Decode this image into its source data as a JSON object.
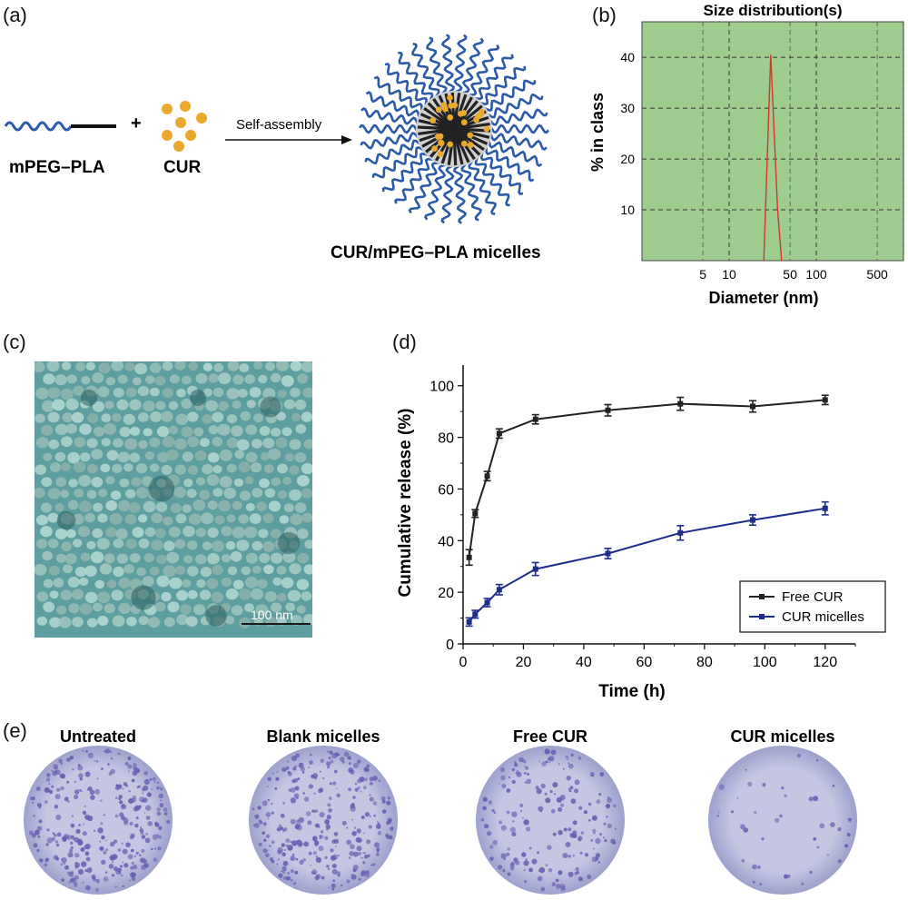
{
  "panels": {
    "a": {
      "label": "(a)",
      "polymer_label": "mPEG–PLA",
      "plus": "+",
      "drug_label": "CUR",
      "arrow_label": "Self-assembly",
      "product_label": "CUR/mPEG–PLA micelles",
      "colors": {
        "peg": "#2b5aa8",
        "drug": "#e9a92c",
        "core": "#222222"
      }
    },
    "b": {
      "label": "(b)",
      "background_color": "#9fcd8f"
    },
    "c": {
      "label": "(c)",
      "scale_bar": "100 nm",
      "background_color": "#5f9fa0"
    },
    "d": {
      "label": "(d)"
    },
    "e": {
      "label": "(e)",
      "plates": [
        {
          "title": "Untreated",
          "density": 1.0
        },
        {
          "title": "Blank micelles",
          "density": 0.9
        },
        {
          "title": "Free CUR",
          "density": 0.55
        },
        {
          "title": "CUR micelles",
          "density": 0.12
        }
      ]
    }
  },
  "chart_data": [
    {
      "type": "line",
      "title": "Size distribution(s)",
      "xlabel": "Diameter (nm)",
      "ylabel": "% in class",
      "x_scale": "log",
      "x_ticks": [
        5,
        10,
        50,
        100,
        500
      ],
      "y_ticks": [
        10,
        20,
        30,
        40
      ],
      "xlim": [
        1,
        1000
      ],
      "ylim": [
        0,
        47
      ],
      "grid": true,
      "series": [
        {
          "x": [
            25,
            30,
            36,
            40
          ],
          "y": [
            0,
            40.5,
            10,
            0
          ],
          "color": "#d0392b"
        }
      ]
    },
    {
      "type": "line",
      "title": "",
      "xlabel": "Time (h)",
      "ylabel": "Cumulative release (%)",
      "xlim": [
        0,
        130
      ],
      "ylim": [
        0,
        108
      ],
      "x_ticks": [
        0,
        20,
        40,
        60,
        80,
        100,
        120
      ],
      "y_ticks": [
        0,
        20,
        40,
        60,
        80,
        100
      ],
      "legend_position": "bottom-right",
      "series": [
        {
          "name": "Free CUR",
          "color": "#222222",
          "x": [
            2,
            4,
            8,
            12,
            24,
            48,
            72,
            96,
            120
          ],
          "y": [
            33.5,
            50.5,
            65,
            81.5,
            87,
            90.5,
            93,
            92,
            94.5
          ],
          "err": [
            3,
            1.5,
            1.8,
            1.8,
            1.8,
            2.2,
            2.5,
            2.2,
            1.8
          ]
        },
        {
          "name": "CUR micelles",
          "color": "#1f2d8a",
          "x": [
            2,
            4,
            8,
            12,
            24,
            48,
            72,
            96,
            120
          ],
          "y": [
            8.5,
            11.5,
            16,
            21,
            29,
            35,
            43,
            48,
            52.5
          ],
          "err": [
            1.6,
            1.5,
            1.6,
            2,
            2.5,
            2,
            2.8,
            2,
            2.5
          ]
        }
      ]
    }
  ]
}
